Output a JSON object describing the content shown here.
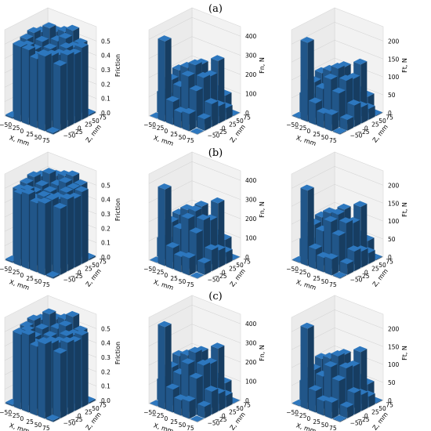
{
  "figure": {
    "row_labels": [
      "(a)",
      "(b)",
      "(c)"
    ]
  },
  "chart_data": {
    "type": "bar3d",
    "description_rows": [
      "(a)",
      "(b)",
      "(c)"
    ],
    "x_axis": {
      "label": "X, mm",
      "ticks": [
        -50,
        -25,
        0,
        25,
        50,
        75
      ],
      "tick_labels": [
        "−50",
        "−25",
        "0",
        "25",
        "50",
        "75"
      ]
    },
    "z_axis": {
      "label": "Z, mm",
      "ticks": [
        -50,
        -25,
        0,
        25,
        50,
        75
      ],
      "tick_labels": [
        "−50",
        "−25",
        "0",
        "25",
        "50",
        "75"
      ]
    },
    "grid": true,
    "bar_color": "#2a6eb0",
    "panels": [
      {
        "metric": "friction",
        "zlabel": "Friction",
        "zlim": [
          0,
          0.6
        ],
        "zticks": [
          0.0,
          0.1,
          0.2,
          0.3,
          0.4,
          0.5
        ],
        "ztick_labels": [
          "0.0",
          "0.1",
          "0.2",
          "0.3",
          "0.4",
          "0.5"
        ],
        "grid_values": {
          "(a)": [
            [
              0.01,
              0.52,
              0.52,
              0.48,
              0.52,
              0.01
            ],
            [
              0.48,
              0.5,
              0.45,
              0.48,
              0.5,
              0.45
            ],
            [
              0.5,
              0.45,
              0.4,
              0.45,
              0.48,
              0.5
            ],
            [
              0.52,
              0.48,
              0.45,
              0.42,
              0.5,
              0.48
            ],
            [
              0.5,
              0.55,
              0.48,
              0.52,
              0.48,
              0.5
            ],
            [
              0.01,
              0.5,
              0.52,
              0.55,
              0.48,
              0.01
            ]
          ],
          "(b)": [
            [
              0.01,
              0.5,
              0.52,
              0.48,
              0.5,
              0.01
            ],
            [
              0.48,
              0.5,
              0.46,
              0.5,
              0.5,
              0.46
            ],
            [
              0.5,
              0.46,
              0.42,
              0.46,
              0.48,
              0.5
            ],
            [
              0.52,
              0.48,
              0.46,
              0.44,
              0.5,
              0.48
            ],
            [
              0.5,
              0.54,
              0.48,
              0.52,
              0.5,
              0.5
            ],
            [
              0.01,
              0.5,
              0.52,
              0.54,
              0.5,
              0.01
            ]
          ],
          "(c)": [
            [
              0.01,
              0.52,
              0.54,
              0.48,
              0.52,
              0.01
            ],
            [
              0.48,
              0.52,
              0.45,
              0.48,
              0.5,
              0.45
            ],
            [
              0.5,
              0.45,
              0.4,
              0.46,
              0.48,
              0.5
            ],
            [
              0.52,
              0.48,
              0.45,
              0.42,
              0.5,
              0.48
            ],
            [
              0.5,
              0.56,
              0.48,
              0.52,
              0.48,
              0.5
            ],
            [
              0.01,
              0.5,
              0.52,
              0.56,
              0.48,
              0.01
            ]
          ]
        }
      },
      {
        "metric": "normal-force",
        "zlabel": "Fn, N",
        "zlim": [
          0,
          450
        ],
        "zticks": [
          0,
          100,
          200,
          300,
          400
        ],
        "ztick_labels": [
          "0",
          "100",
          "200",
          "300",
          "400"
        ],
        "grid_values": {
          "(a)": [
            [
              2,
              420,
              120,
              80,
              90,
              2
            ],
            [
              110,
              200,
              180,
              250,
              190,
              60
            ],
            [
              70,
              230,
              260,
              290,
              240,
              120
            ],
            [
              60,
              180,
              220,
              200,
              230,
              90
            ],
            [
              90,
              150,
              240,
              180,
              290,
              60
            ],
            [
              2,
              80,
              60,
              100,
              90,
              2
            ]
          ],
          "(b)": [
            [
              2,
              400,
              110,
              80,
              90,
              2
            ],
            [
              100,
              210,
              190,
              260,
              200,
              60
            ],
            [
              70,
              230,
              270,
              280,
              250,
              110
            ],
            [
              60,
              180,
              210,
              200,
              230,
              90
            ],
            [
              90,
              160,
              250,
              180,
              300,
              60
            ],
            [
              2,
              80,
              60,
              100,
              90,
              2
            ]
          ],
          "(c)": [
            [
              2,
              430,
              120,
              80,
              90,
              2
            ],
            [
              110,
              200,
              180,
              250,
              190,
              60
            ],
            [
              70,
              240,
              260,
              290,
              240,
              120
            ],
            [
              60,
              180,
              220,
              200,
              230,
              90
            ],
            [
              90,
              150,
              240,
              180,
              290,
              60
            ],
            [
              2,
              80,
              60,
              100,
              90,
              2
            ]
          ]
        }
      },
      {
        "metric": "friction-force",
        "zlabel": "Ft, N",
        "zlim": [
          0,
          240
        ],
        "zticks": [
          0,
          50,
          100,
          150,
          200
        ],
        "ztick_labels": [
          "0",
          "50",
          "100",
          "150",
          "200"
        ],
        "grid_values": {
          "(a)": [
            [
              2,
              220,
              60,
              40,
              45,
              2
            ],
            [
              55,
              100,
              90,
              125,
              95,
              30
            ],
            [
              35,
              115,
              130,
              145,
              120,
              60
            ],
            [
              30,
              90,
              110,
              100,
              115,
              45
            ],
            [
              45,
              80,
              120,
              90,
              145,
              30
            ],
            [
              2,
              40,
              30,
              50,
              45,
              2
            ]
          ],
          "(b)": [
            [
              2,
              210,
              55,
              40,
              45,
              2
            ],
            [
              50,
              105,
              95,
              130,
              100,
              30
            ],
            [
              35,
              115,
              135,
              140,
              125,
              55
            ],
            [
              30,
              90,
              105,
              100,
              115,
              45
            ],
            [
              45,
              80,
              125,
              90,
              150,
              30
            ],
            [
              2,
              40,
              30,
              50,
              45,
              2
            ]
          ],
          "(c)": [
            [
              2,
              225,
              60,
              40,
              45,
              2
            ],
            [
              55,
              100,
              90,
              125,
              95,
              30
            ],
            [
              35,
              120,
              130,
              145,
              120,
              60
            ],
            [
              30,
              90,
              110,
              100,
              115,
              45
            ],
            [
              45,
              80,
              120,
              90,
              145,
              30
            ],
            [
              2,
              40,
              30,
              50,
              45,
              2
            ]
          ]
        }
      }
    ]
  }
}
